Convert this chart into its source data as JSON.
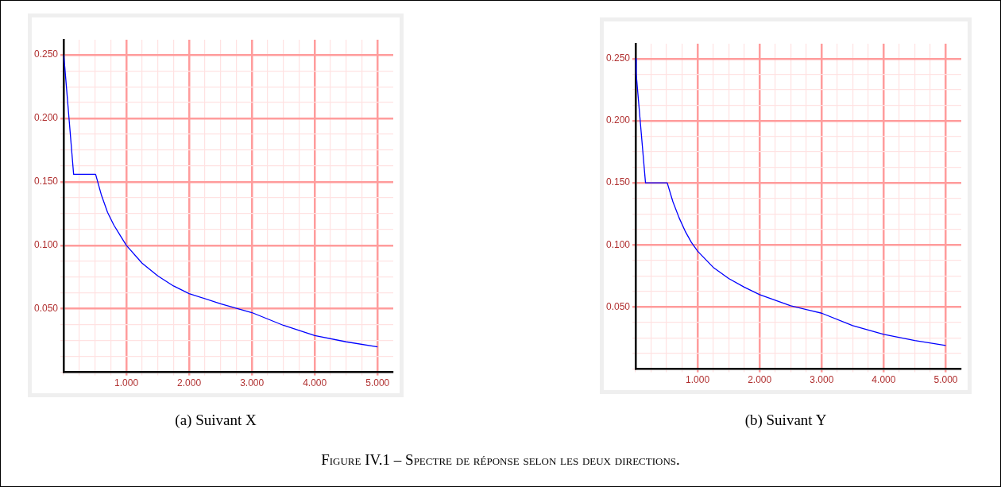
{
  "chart_data": [
    {
      "type": "line",
      "title": "(a) Suivant X",
      "annotations": [
        "Figure IV.1 – Spectre de réponse selon les deux directions."
      ],
      "x": [
        0,
        0.02,
        0.16,
        0.51,
        0.6,
        0.7,
        0.8,
        0.9,
        1.0,
        1.25,
        1.5,
        1.75,
        2.0,
        2.5,
        3.0,
        3.5,
        4.0,
        4.5,
        5.0
      ],
      "series": [
        {
          "color": "#0000ff",
          "values": [
            0.25,
            0.24,
            0.156,
            0.156,
            0.14,
            0.126,
            0.116,
            0.108,
            0.1,
            0.086,
            0.076,
            0.068,
            0.062,
            0.054,
            0.047,
            0.037,
            0.029,
            0.024,
            0.02
          ]
        }
      ],
      "xlim": [
        0,
        5.25
      ],
      "ylim": [
        0,
        0.262
      ],
      "xticks": [
        {
          "value": 0,
          "label": null
        },
        {
          "value": 0.25,
          "label": null
        },
        {
          "value": 0.5,
          "label": null
        },
        {
          "value": 0.75,
          "label": null
        },
        {
          "value": 1,
          "label": "1.000"
        },
        {
          "value": 1.25,
          "label": null
        },
        {
          "value": 1.5,
          "label": null
        },
        {
          "value": 1.75,
          "label": null
        },
        {
          "value": 2,
          "label": "2.000"
        },
        {
          "value": 2.25,
          "label": null
        },
        {
          "value": 2.5,
          "label": null
        },
        {
          "value": 2.75,
          "label": null
        },
        {
          "value": 3,
          "label": "3.000"
        },
        {
          "value": 3.25,
          "label": null
        },
        {
          "value": 3.5,
          "label": null
        },
        {
          "value": 3.75,
          "label": null
        },
        {
          "value": 4,
          "label": "4.000"
        },
        {
          "value": 4.25,
          "label": null
        },
        {
          "value": 4.5,
          "label": null
        },
        {
          "value": 4.75,
          "label": null
        },
        {
          "value": 5,
          "label": "5.000"
        }
      ],
      "yticks": [
        {
          "value": 0,
          "label": null
        },
        {
          "value": 0.0125,
          "label": null
        },
        {
          "value": 0.025,
          "label": null
        },
        {
          "value": 0.0375,
          "label": null
        },
        {
          "value": 0.05,
          "label": "0.050"
        },
        {
          "value": 0.0625,
          "label": null
        },
        {
          "value": 0.075,
          "label": null
        },
        {
          "value": 0.0875,
          "label": null
        },
        {
          "value": 0.1,
          "label": "0.100"
        },
        {
          "value": 0.1125,
          "label": null
        },
        {
          "value": 0.125,
          "label": null
        },
        {
          "value": 0.1375,
          "label": null
        },
        {
          "value": 0.15,
          "label": "0.150"
        },
        {
          "value": 0.1625,
          "label": null
        },
        {
          "value": 0.175,
          "label": null
        },
        {
          "value": 0.1875,
          "label": null
        },
        {
          "value": 0.2,
          "label": "0.200"
        },
        {
          "value": 0.2125,
          "label": null
        },
        {
          "value": 0.225,
          "label": null
        },
        {
          "value": 0.2375,
          "label": null
        },
        {
          "value": 0.25,
          "label": "0.250"
        }
      ],
      "grid": true,
      "marker": "none"
    },
    {
      "type": "line",
      "title": "(b) Suivant Y",
      "x": [
        0,
        0.01,
        0.03,
        0.16,
        0.51,
        0.6,
        0.7,
        0.8,
        0.9,
        1.0,
        1.25,
        1.5,
        1.75,
        2.0,
        2.5,
        3.0,
        3.5,
        4.0,
        4.5,
        5.0
      ],
      "series": [
        {
          "color": "#0000ff",
          "values": [
            0.25,
            0.238,
            0.226,
            0.15,
            0.15,
            0.135,
            0.122,
            0.111,
            0.102,
            0.095,
            0.082,
            0.073,
            0.066,
            0.06,
            0.051,
            0.045,
            0.035,
            0.028,
            0.023,
            0.019
          ]
        }
      ],
      "xlim": [
        0,
        5.25
      ],
      "ylim": [
        0,
        0.262
      ],
      "xticks": [
        {
          "value": 0,
          "label": null
        },
        {
          "value": 0.25,
          "label": null
        },
        {
          "value": 0.5,
          "label": null
        },
        {
          "value": 0.75,
          "label": null
        },
        {
          "value": 1,
          "label": "1.000"
        },
        {
          "value": 1.25,
          "label": null
        },
        {
          "value": 1.5,
          "label": null
        },
        {
          "value": 1.75,
          "label": null
        },
        {
          "value": 2,
          "label": "2.000"
        },
        {
          "value": 2.25,
          "label": null
        },
        {
          "value": 2.5,
          "label": null
        },
        {
          "value": 2.75,
          "label": null
        },
        {
          "value": 3,
          "label": "3.000"
        },
        {
          "value": 3.25,
          "label": null
        },
        {
          "value": 3.5,
          "label": null
        },
        {
          "value": 3.75,
          "label": null
        },
        {
          "value": 4,
          "label": "4.000"
        },
        {
          "value": 4.25,
          "label": null
        },
        {
          "value": 4.5,
          "label": null
        },
        {
          "value": 4.75,
          "label": null
        },
        {
          "value": 5,
          "label": "5.000"
        }
      ],
      "yticks": [
        {
          "value": 0,
          "label": null
        },
        {
          "value": 0.0125,
          "label": null
        },
        {
          "value": 0.025,
          "label": null
        },
        {
          "value": 0.0375,
          "label": null
        },
        {
          "value": 0.05,
          "label": "0.050"
        },
        {
          "value": 0.0625,
          "label": null
        },
        {
          "value": 0.075,
          "label": null
        },
        {
          "value": 0.0875,
          "label": null
        },
        {
          "value": 0.1,
          "label": "0.100"
        },
        {
          "value": 0.1125,
          "label": null
        },
        {
          "value": 0.125,
          "label": null
        },
        {
          "value": 0.1375,
          "label": null
        },
        {
          "value": 0.15,
          "label": "0.150"
        },
        {
          "value": 0.1625,
          "label": null
        },
        {
          "value": 0.175,
          "label": null
        },
        {
          "value": 0.1875,
          "label": null
        },
        {
          "value": 0.2,
          "label": "0.200"
        },
        {
          "value": 0.2125,
          "label": null
        },
        {
          "value": 0.225,
          "label": null
        },
        {
          "value": 0.2375,
          "label": null
        },
        {
          "value": 0.25,
          "label": "0.250"
        }
      ],
      "grid": true,
      "marker": "none"
    }
  ]
}
